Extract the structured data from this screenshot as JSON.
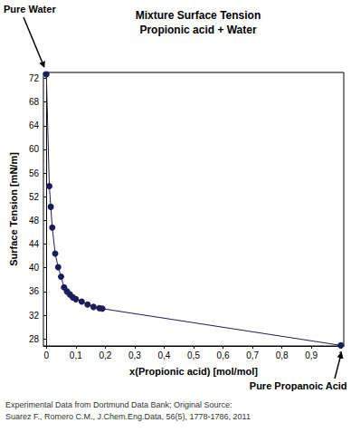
{
  "chart_data": {
    "type": "line",
    "title": "Mixture Surface Tension",
    "subtitle": "Propionic acid + Water",
    "x_label": "x(Propionic acid) [mol/mol]",
    "y_label": "Surface Tension [mN/m]",
    "x": [
      0,
      0.01,
      0.015,
      0.02,
      0.03,
      0.04,
      0.05,
      0.06,
      0.07,
      0.08,
      0.09,
      0.1,
      0.12,
      0.14,
      0.16,
      0.18,
      0.19,
      1.0
    ],
    "values": [
      72.7,
      53.8,
      50.3,
      46.8,
      42.4,
      40.1,
      38.5,
      36.7,
      36.0,
      35.5,
      35.0,
      34.7,
      34.3,
      33.8,
      33.4,
      33.2,
      33.1,
      26.9
    ],
    "color": "#1c1c5c",
    "marker": "circle",
    "xlim": [
      -0.01,
      1.01
    ],
    "xticks": [
      0,
      {
        "value": 0.1,
        "label": "0,1"
      },
      {
        "value": 0.2,
        "label": "0,2"
      },
      {
        "value": 0.3,
        "label": "0,3"
      },
      {
        "value": 0.4,
        "label": "0,4"
      },
      {
        "value": 0.5,
        "label": "0,5"
      },
      {
        "value": 0.6,
        "label": "0,6"
      },
      {
        "value": 0.7,
        "label": "0,7"
      },
      {
        "value": 0.8,
        "label": "0,8"
      },
      {
        "value": 0.9,
        "label": "0,9"
      },
      1
    ],
    "ylim": [
      26.8,
      73
    ],
    "yticks": [
      28,
      32,
      36,
      40,
      44,
      48,
      52,
      56,
      60,
      64,
      68,
      72
    ],
    "grid": false,
    "annotations": [
      {
        "text": "Pure Water",
        "x": 0,
        "y": 72.7
      },
      {
        "text": "Pure Propanoic Acid",
        "x": 1.0,
        "y": 26.9
      }
    ],
    "source": [
      "Experimental Data from Dortmund Data Bank; Original Source:",
      "Suarez F., Romero C.M., J.Chem.Eng.Data, 56(5), 1778-1786, 2011"
    ]
  }
}
